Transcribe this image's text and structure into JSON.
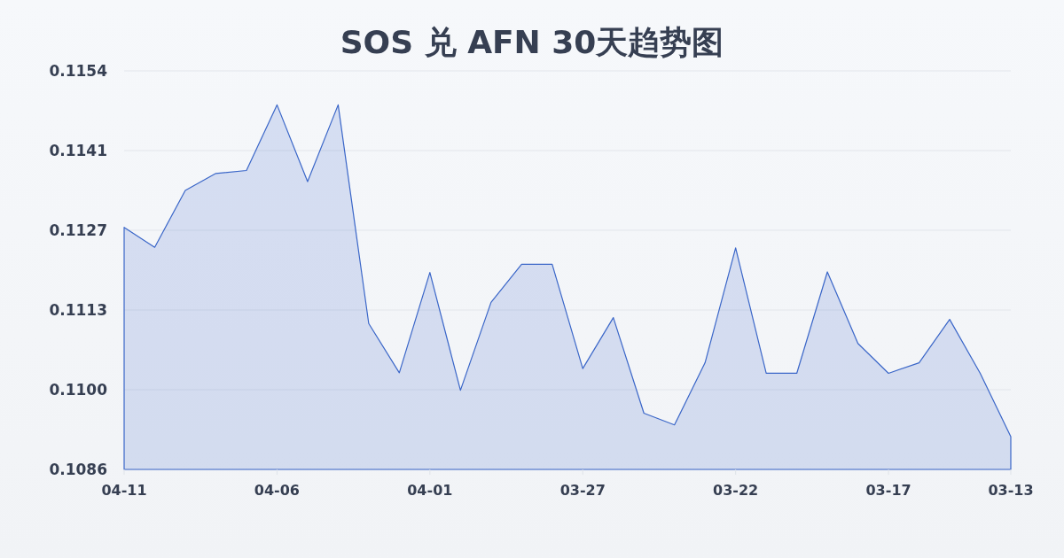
{
  "chart_data": {
    "type": "area",
    "title": "SOS 兑 AFN 30天趋势图",
    "categories": [
      "04-11",
      null,
      null,
      null,
      null,
      "04-06",
      null,
      null,
      null,
      null,
      "04-01",
      null,
      null,
      null,
      null,
      "03-27",
      null,
      null,
      null,
      null,
      "03-22",
      null,
      null,
      null,
      null,
      "03-17",
      null,
      null,
      null,
      "03-13"
    ],
    "values": [
      0.11275,
      0.11241,
      0.11338,
      0.11367,
      0.11372,
      0.11484,
      0.11353,
      0.11484,
      0.11111,
      0.11027,
      0.11198,
      0.10997,
      0.11147,
      0.11212,
      0.11212,
      0.11034,
      0.11121,
      0.10958,
      0.10938,
      0.11044,
      0.1124,
      0.11026,
      0.11026,
      0.11199,
      0.11077,
      0.11026,
      0.11044,
      0.11118,
      0.11026,
      0.10918
    ],
    "color": "#3a66c8",
    "ylim": [
      0.10862,
      0.11542
    ],
    "yticks": [
      {
        "value": 0.10862,
        "label": "0.1086"
      },
      {
        "value": 0.10998,
        "label": "0.1100"
      },
      {
        "value": 0.11134,
        "label": "0.1113"
      },
      {
        "value": 0.1127,
        "label": "0.1127"
      },
      {
        "value": 0.11406,
        "label": "0.1141"
      },
      {
        "value": 0.11542,
        "label": "0.1154"
      }
    ],
    "grid": "y"
  }
}
